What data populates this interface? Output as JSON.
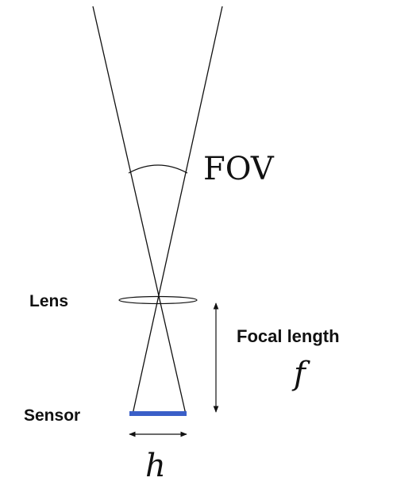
{
  "diagram": {
    "labels": {
      "fov": "FOV",
      "lens": "Lens",
      "focal_length": "Focal length",
      "focal_symbol": "f",
      "sensor": "Sensor",
      "sensor_height_symbol": "h"
    },
    "colors": {
      "sensor": "#3a5fc8",
      "lines": "#111111",
      "background": "#ffffff"
    }
  }
}
